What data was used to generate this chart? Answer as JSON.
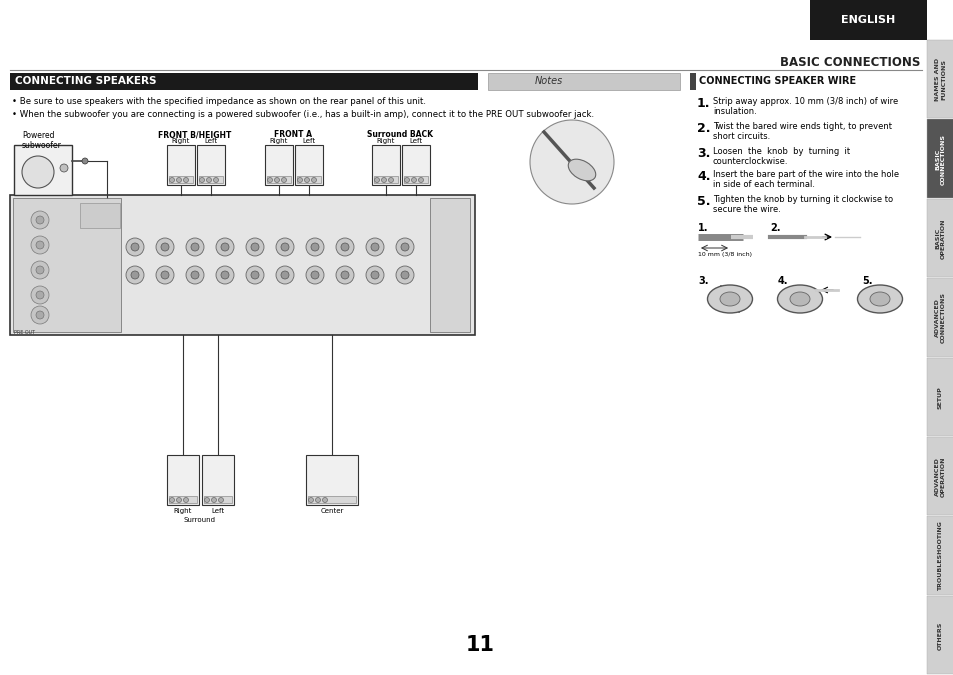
{
  "page_bg": "#ffffff",
  "top_bar_color": "#1a1a1a",
  "english_label": "ENGLISH",
  "header_title": "BASIC CONNECTIONS",
  "section1_title": "CONNECTING SPEAKERS",
  "section1_bg": "#1a1a1a",
  "section1_text_color": "#ffffff",
  "notes_label": "Notes",
  "notes_bg": "#c8c8c8",
  "section2_title": "CONNECTING SPEAKER WIRE",
  "section2_accent": "#555555",
  "bullet1": "Be sure to use speakers with the specified impedance as shown on the rear panel of this unit.",
  "bullet2": "When the subwoofer you are connecting is a powered subwoofer (i.e., has a built-in amp), connect it to the PRE OUT subwoofer jack.",
  "powered_sub_label": "Powered\nsubwoofer",
  "front_bh_label": "FRONT B/HEIGHT",
  "front_bh_right": "Right",
  "front_bh_left": "Left",
  "front_a_label": "FRONT A",
  "front_a_right": "Right",
  "front_a_left": "Left",
  "surround_back_label": "Surround BACK",
  "surround_back_right": "Right",
  "surround_back_left": "Left",
  "surround_right": "Right",
  "surround_left": "Left",
  "surround_label": "Surround",
  "center_label": "Center",
  "step1": "Strip away approx. 10 mm (3/8 inch) of wire\ninsulation.",
  "step2": "Twist the bared wire ends tight, to prevent\nshort circuits.",
  "step3": "Loosen  the  knob  by  turning  it\ncounterclockwise.",
  "step4": "Insert the bare part of the wire into the hole\nin side of each terminal.",
  "step5": "Tighten the knob by turning it clockwise to\nsecure the wire.",
  "mm_label": "10 mm (3/8 inch)",
  "step_nums": [
    "1.",
    "2.",
    "3.",
    "4.",
    "5."
  ],
  "page_num": "11",
  "sidebar_labels": [
    "NAMES AND\nFUNCTIONS",
    "BASIC\nCONNECTIONS",
    "BASIC\nOPERATION",
    "ADVANCED\nCONNECTIONS",
    "SETUP",
    "ADVANCED\nOPERATION",
    "TROUBLESHOOTING",
    "OTHERS"
  ],
  "sidebar_active": 1,
  "sidebar_bg": "#d0d0d0",
  "sidebar_active_bg": "#555555",
  "sidebar_text": "#333333",
  "sidebar_active_text": "#ffffff",
  "divider_color": "#888888",
  "body_text_color": "#000000",
  "step_num_color": "#000000"
}
